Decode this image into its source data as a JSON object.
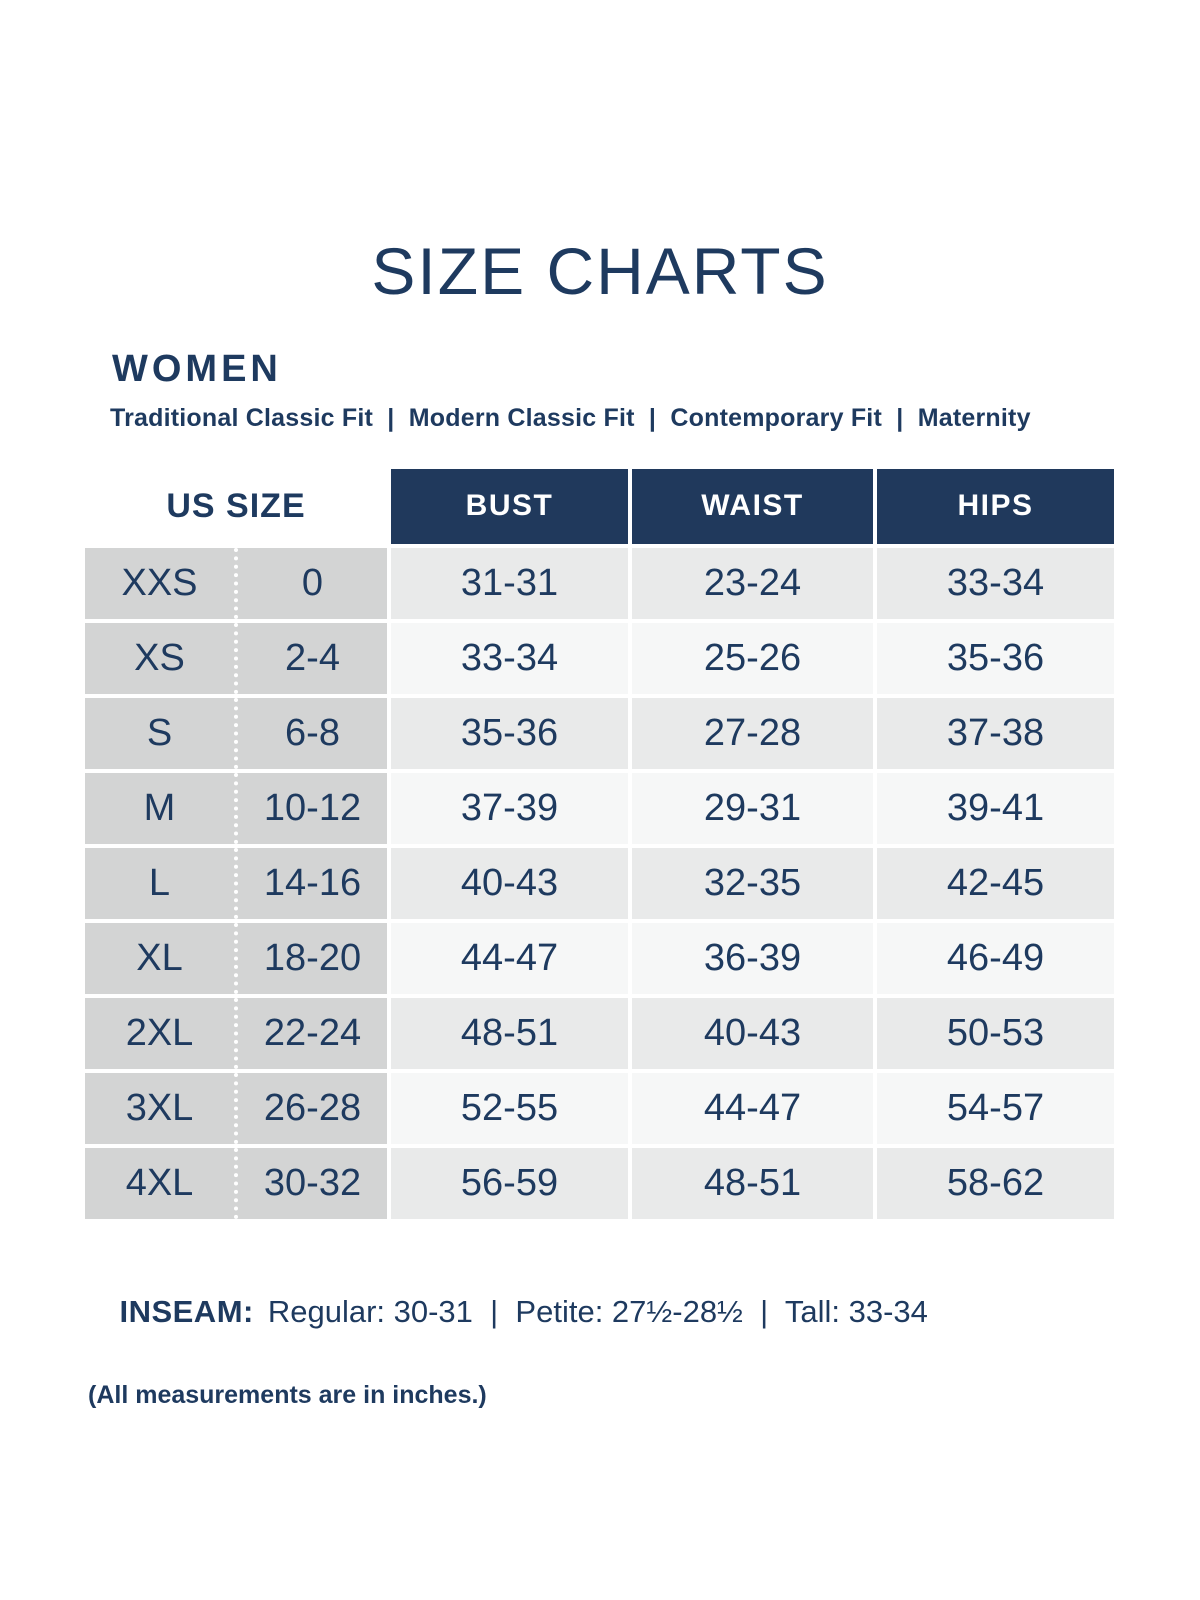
{
  "header": {
    "title": "SIZE CHARTS",
    "section": "WOMEN",
    "fit_types": "Traditional Classic Fit  |  Modern Classic Fit  |  Contemporary Fit  |  Maternity"
  },
  "table": {
    "headers": {
      "us_size": "US SIZE",
      "bust": "BUST",
      "waist": "WAIST",
      "hips": "HIPS"
    },
    "rows": [
      {
        "size": "XXS",
        "us": "0",
        "bust": "31-31",
        "waist": "23-24",
        "hips": "33-34"
      },
      {
        "size": "XS",
        "us": "2-4",
        "bust": "33-34",
        "waist": "25-26",
        "hips": "35-36"
      },
      {
        "size": "S",
        "us": "6-8",
        "bust": "35-36",
        "waist": "27-28",
        "hips": "37-38"
      },
      {
        "size": "M",
        "us": "10-12",
        "bust": "37-39",
        "waist": "29-31",
        "hips": "39-41"
      },
      {
        "size": "L",
        "us": "14-16",
        "bust": "40-43",
        "waist": "32-35",
        "hips": "42-45"
      },
      {
        "size": "XL",
        "us": "18-20",
        "bust": "44-47",
        "waist": "36-39",
        "hips": "46-49"
      },
      {
        "size": "2XL",
        "us": "22-24",
        "bust": "48-51",
        "waist": "40-43",
        "hips": "50-53"
      },
      {
        "size": "3XL",
        "us": "26-28",
        "bust": "52-55",
        "waist": "44-47",
        "hips": "54-57"
      },
      {
        "size": "4XL",
        "us": "30-32",
        "bust": "56-59",
        "waist": "48-51",
        "hips": "58-62"
      }
    ]
  },
  "footer": {
    "inseam_label": "INSEAM:",
    "inseam_value": "Regular: 30-31  |  Petite: 27½-28½  |  Tall: 33-34",
    "note": "(All measurements are in inches.)"
  },
  "colors": {
    "navy_text": "#1e3a5f",
    "header_navy": "#20395c",
    "size_column_gray": "#d3d4d4",
    "row_light_gray": "#e9eaea",
    "row_near_white": "#f6f7f7"
  }
}
